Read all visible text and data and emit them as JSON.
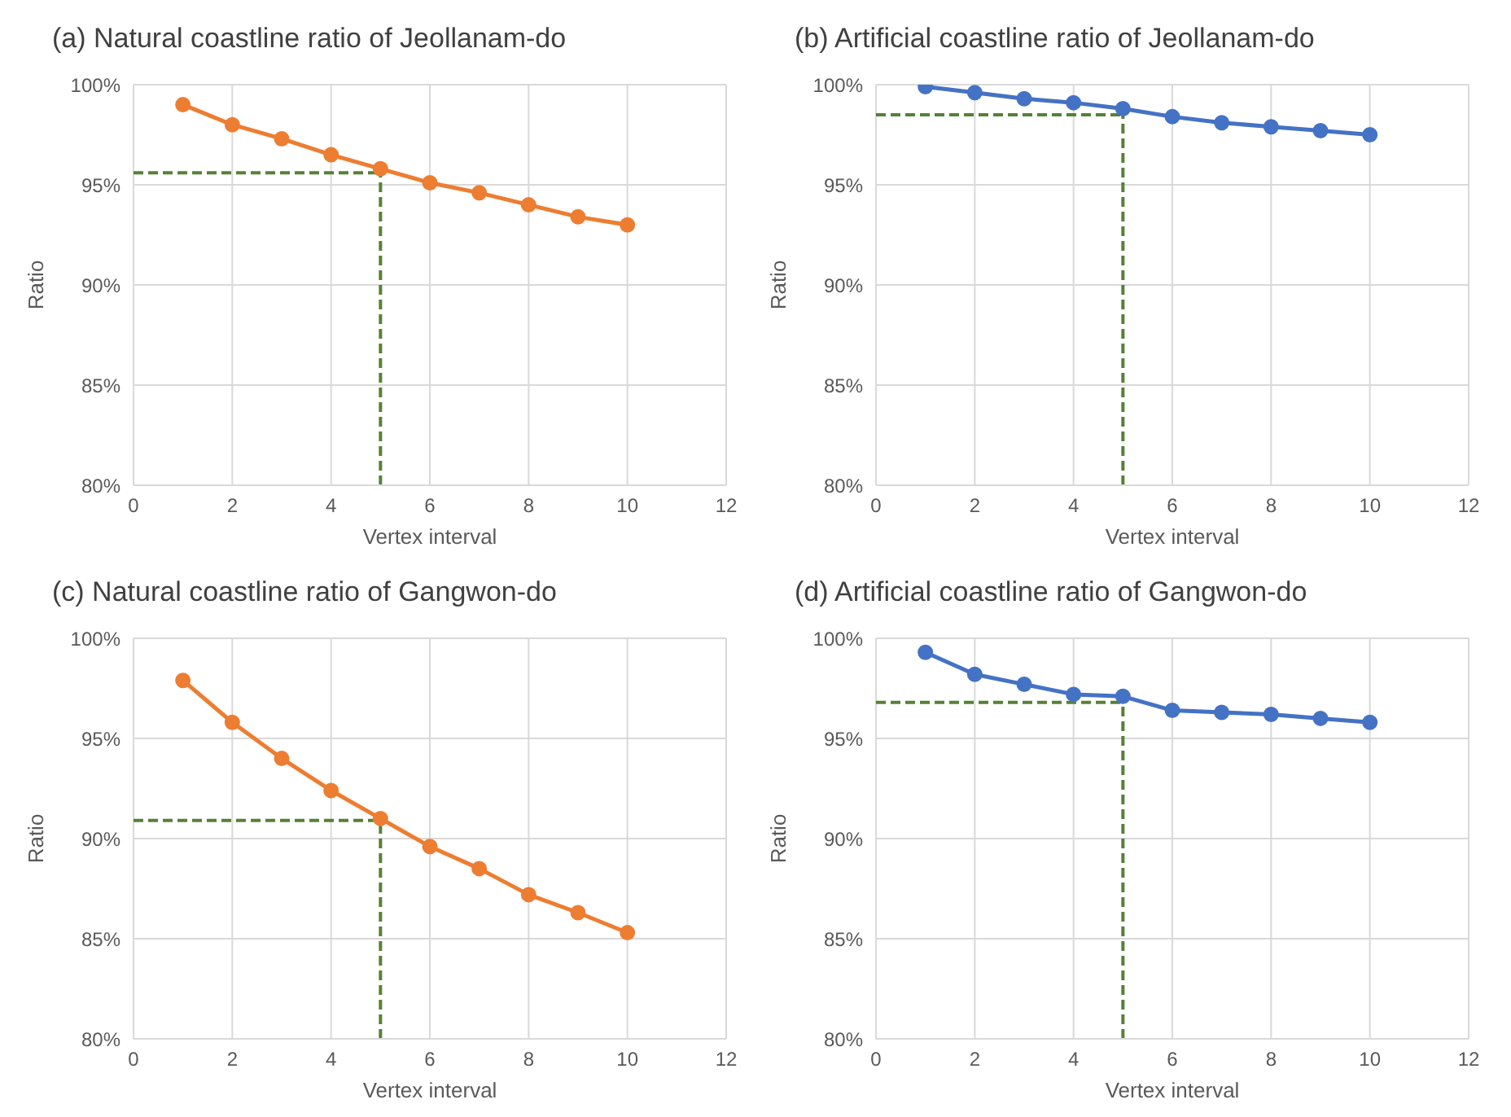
{
  "chart_data": [
    {
      "type": "line",
      "title": "(a) Natural coastline ratio of Jeollanam-do",
      "xlabel": "Vertex interval",
      "ylabel": "Ratio",
      "x": [
        1,
        2,
        3,
        4,
        5,
        6,
        7,
        8,
        9,
        10
      ],
      "series": [
        {
          "color": "#ed7d31",
          "values": [
            99.0,
            98.0,
            97.3,
            96.5,
            95.8,
            95.1,
            94.6,
            94.0,
            93.4,
            93.0
          ]
        }
      ],
      "xlim": [
        0,
        12
      ],
      "xticks": [
        0,
        2,
        4,
        6,
        8,
        10,
        12
      ],
      "ylim": [
        80,
        100
      ],
      "yticks": [
        {
          "value": 80,
          "label": "80%"
        },
        {
          "value": 85,
          "label": "85%"
        },
        {
          "value": 90,
          "label": "90%"
        },
        {
          "value": 95,
          "label": "95%"
        },
        {
          "value": 100,
          "label": "100%"
        }
      ],
      "ref_lines": [
        {
          "axis": "x",
          "value": 5,
          "color": "#548235",
          "line_style": "dashed"
        },
        {
          "axis": "y",
          "value": 95.6,
          "color": "#548235",
          "line_style": "dashed"
        }
      ],
      "grid": true,
      "marker": "circle",
      "line_style": "solid"
    },
    {
      "type": "line",
      "title": "(b) Artificial coastline ratio of Jeollanam-do",
      "xlabel": "Vertex interval",
      "ylabel": "Ratio",
      "x": [
        1,
        2,
        3,
        4,
        5,
        6,
        7,
        8,
        9,
        10
      ],
      "series": [
        {
          "color": "#4472c4",
          "values": [
            99.9,
            99.6,
            99.3,
            99.1,
            98.8,
            98.4,
            98.1,
            97.9,
            97.7,
            97.5
          ]
        }
      ],
      "xlim": [
        0,
        12
      ],
      "xticks": [
        0,
        2,
        4,
        6,
        8,
        10,
        12
      ],
      "ylim": [
        80,
        100
      ],
      "yticks": [
        {
          "value": 80,
          "label": "80%"
        },
        {
          "value": 85,
          "label": "85%"
        },
        {
          "value": 90,
          "label": "90%"
        },
        {
          "value": 95,
          "label": "95%"
        },
        {
          "value": 100,
          "label": "100%"
        }
      ],
      "ref_lines": [
        {
          "axis": "x",
          "value": 5,
          "color": "#548235",
          "line_style": "dashed"
        },
        {
          "axis": "y",
          "value": 98.5,
          "color": "#548235",
          "line_style": "dashed"
        }
      ],
      "grid": true,
      "marker": "circle",
      "line_style": "solid"
    },
    {
      "type": "line",
      "title": "(c) Natural coastline ratio of Gangwon-do",
      "xlabel": "Vertex interval",
      "ylabel": "Ratio",
      "x": [
        1,
        2,
        3,
        4,
        5,
        6,
        7,
        8,
        9,
        10
      ],
      "series": [
        {
          "color": "#ed7d31",
          "values": [
            97.9,
            95.8,
            94.0,
            92.4,
            91.0,
            89.6,
            88.5,
            87.2,
            86.3,
            85.3
          ]
        }
      ],
      "xlim": [
        0,
        12
      ],
      "xticks": [
        0,
        2,
        4,
        6,
        8,
        10,
        12
      ],
      "ylim": [
        80,
        100
      ],
      "yticks": [
        {
          "value": 80,
          "label": "80%"
        },
        {
          "value": 85,
          "label": "85%"
        },
        {
          "value": 90,
          "label": "90%"
        },
        {
          "value": 95,
          "label": "95%"
        },
        {
          "value": 100,
          "label": "100%"
        }
      ],
      "ref_lines": [
        {
          "axis": "x",
          "value": 5,
          "color": "#548235",
          "line_style": "dashed"
        },
        {
          "axis": "y",
          "value": 90.9,
          "color": "#548235",
          "line_style": "dashed"
        }
      ],
      "grid": true,
      "marker": "circle",
      "line_style": "solid"
    },
    {
      "type": "line",
      "title": "(d) Artificial coastline ratio of Gangwon-do",
      "xlabel": "Vertex interval",
      "ylabel": "Ratio",
      "x": [
        1,
        2,
        3,
        4,
        5,
        6,
        7,
        8,
        9,
        10
      ],
      "series": [
        {
          "color": "#4472c4",
          "values": [
            99.3,
            98.2,
            97.7,
            97.2,
            97.1,
            96.4,
            96.3,
            96.2,
            96.0,
            95.8
          ]
        }
      ],
      "xlim": [
        0,
        12
      ],
      "xticks": [
        0,
        2,
        4,
        6,
        8,
        10,
        12
      ],
      "ylim": [
        80,
        100
      ],
      "yticks": [
        {
          "value": 80,
          "label": "80%"
        },
        {
          "value": 85,
          "label": "85%"
        },
        {
          "value": 90,
          "label": "90%"
        },
        {
          "value": 95,
          "label": "95%"
        },
        {
          "value": 100,
          "label": "100%"
        }
      ],
      "ref_lines": [
        {
          "axis": "x",
          "value": 5,
          "color": "#548235",
          "line_style": "dashed"
        },
        {
          "axis": "y",
          "value": 96.8,
          "color": "#548235",
          "line_style": "dashed"
        }
      ],
      "grid": true,
      "marker": "circle",
      "line_style": "solid"
    }
  ]
}
